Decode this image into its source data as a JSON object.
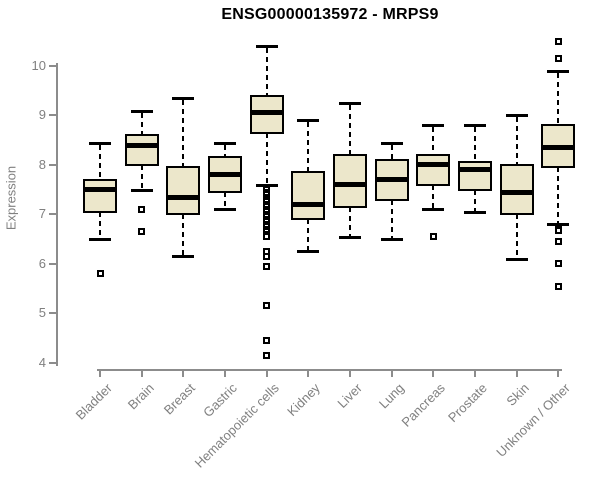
{
  "title": "ENSG00000135972 - MRPS9",
  "chart_data": {
    "type": "boxplot",
    "title": "ENSG00000135972 - MRPS9",
    "xlabel": "",
    "ylabel": "Expression",
    "ylim": [
      4,
      10
    ],
    "yticks": [
      4,
      5,
      6,
      7,
      8,
      9,
      10
    ],
    "grid": false,
    "legend": false,
    "categories": [
      "Bladder",
      "Brain",
      "Breast",
      "Gastric",
      "Hematopoietic cells",
      "Kidney",
      "Liver",
      "Lung",
      "Pancreas",
      "Prostate",
      "Skin",
      "Unknown / Other"
    ],
    "series": [
      {
        "label": "Bladder",
        "whisker_low": 6.5,
        "q1": 7.05,
        "median": 7.5,
        "q3": 7.7,
        "whisker_high": 8.45,
        "outliers": [
          5.8
        ]
      },
      {
        "label": "Brain",
        "whisker_low": 7.5,
        "q1": 8.0,
        "median": 8.4,
        "q3": 8.6,
        "whisker_high": 9.1,
        "outliers": [
          7.1,
          6.65
        ]
      },
      {
        "label": "Breast",
        "whisker_low": 6.15,
        "q1": 7.0,
        "median": 7.35,
        "q3": 7.95,
        "whisker_high": 9.35,
        "outliers": []
      },
      {
        "label": "Gastric",
        "whisker_low": 7.1,
        "q1": 7.45,
        "median": 7.8,
        "q3": 8.15,
        "whisker_high": 8.45,
        "outliers": []
      },
      {
        "label": "Hematopoietic cells",
        "whisker_low": 7.6,
        "q1": 8.65,
        "median": 9.05,
        "q3": 9.4,
        "whisker_high": 10.4,
        "outliers": [
          7.55,
          7.5,
          7.45,
          7.4,
          7.35,
          7.3,
          7.25,
          7.2,
          7.15,
          7.1,
          7.05,
          7.0,
          6.95,
          6.9,
          6.85,
          6.8,
          6.75,
          6.7,
          6.65,
          6.6,
          6.55,
          6.25,
          6.15,
          5.95,
          5.15,
          4.45,
          4.15
        ]
      },
      {
        "label": "Kidney",
        "whisker_low": 6.25,
        "q1": 6.9,
        "median": 7.2,
        "q3": 7.85,
        "whisker_high": 8.9,
        "outliers": []
      },
      {
        "label": "Liver",
        "whisker_low": 6.55,
        "q1": 7.15,
        "median": 7.6,
        "q3": 8.2,
        "whisker_high": 9.25,
        "outliers": []
      },
      {
        "label": "Lung",
        "whisker_low": 6.5,
        "q1": 7.3,
        "median": 7.7,
        "q3": 8.1,
        "whisker_high": 8.45,
        "outliers": []
      },
      {
        "label": "Pancreas",
        "whisker_low": 7.1,
        "q1": 7.6,
        "median": 8.0,
        "q3": 8.2,
        "whisker_high": 8.8,
        "outliers": [
          6.55
        ]
      },
      {
        "label": "Prostate",
        "whisker_low": 7.05,
        "q1": 7.5,
        "median": 7.9,
        "q3": 8.05,
        "whisker_high": 8.8,
        "outliers": []
      },
      {
        "label": "Skin",
        "whisker_low": 6.1,
        "q1": 7.0,
        "median": 7.45,
        "q3": 8.0,
        "whisker_high": 9.0,
        "outliers": []
      },
      {
        "label": "Unknown / Other",
        "whisker_low": 6.8,
        "q1": 7.95,
        "median": 8.35,
        "q3": 8.8,
        "whisker_high": 9.9,
        "outliers": [
          10.5,
          10.15,
          6.72,
          6.68,
          6.45,
          6.0,
          5.55
        ]
      }
    ],
    "style": {
      "box_fill": "#ece7cb",
      "box_border": "#000000",
      "median_color": "#000000",
      "whisker_color": "#000000",
      "outlier_shape": "open-square",
      "axis_color": "#8c8c8c",
      "tick_label_color": "#808080",
      "title_color": "#000000",
      "background": "#ffffff"
    }
  }
}
